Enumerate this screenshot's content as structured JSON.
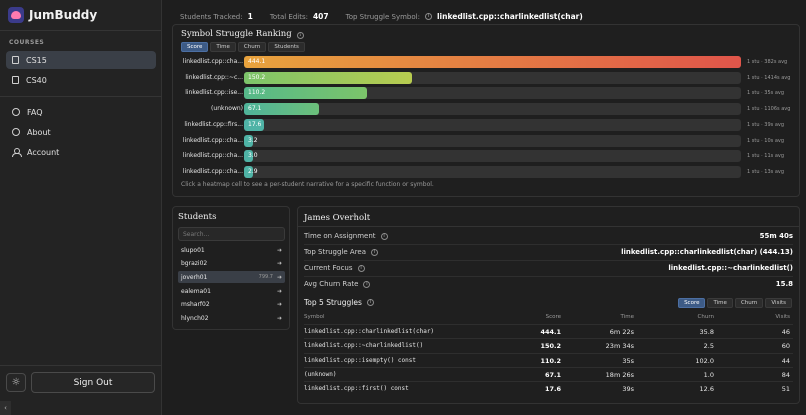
{
  "brand": {
    "name": "JumBuddy"
  },
  "sidebar": {
    "section_label": "COURSES",
    "courses": [
      {
        "label": "CS15",
        "active": true
      },
      {
        "label": "CS40",
        "active": false
      }
    ],
    "links": [
      {
        "label": "FAQ",
        "icon": "help-circle-icon"
      },
      {
        "label": "About",
        "icon": "info-circle-icon"
      },
      {
        "label": "Account",
        "icon": "user-icon"
      }
    ],
    "theme_icon": "sun-icon",
    "theme_glyph": "☼",
    "signout_label": "Sign Out",
    "collapse_glyph": "‹"
  },
  "stats": {
    "students_tracked_label": "Students Tracked:",
    "students_tracked": "1",
    "total_edits_label": "Total Edits:",
    "total_edits": "407",
    "top_struggle_label": "Top Struggle Symbol:",
    "top_struggle": "linkedlist.cpp::charlinkedlist(char)"
  },
  "ranking": {
    "title": "Symbol Struggle Ranking",
    "tabs": [
      {
        "label": "Score",
        "active": true
      },
      {
        "label": "Time",
        "active": false
      },
      {
        "label": "Churn",
        "active": false
      },
      {
        "label": "Students",
        "active": false
      }
    ],
    "max_score": 444.1,
    "rows": [
      {
        "label": "linkedlist.cpp::cha...",
        "score": "444.1",
        "value": 444.1,
        "meta": "1 stu · 382s avg",
        "color": "linear-gradient(90deg,#e8a33d,#e0554a)"
      },
      {
        "label": "linkedlist.cpp::~c...",
        "score": "150.2",
        "value": 150.2,
        "meta": "1 stu · 1414s avg",
        "color": "linear-gradient(90deg,#7cc46a,#b8cc50)"
      },
      {
        "label": "linkedlist.cpp::ise...",
        "score": "110.2",
        "value": 110.2,
        "meta": "1 stu · 35s avg",
        "color": "linear-gradient(90deg,#55b98a,#7cc46a)"
      },
      {
        "label": "(unknown)",
        "score": "67.1",
        "value": 67.1,
        "meta": "1 stu · 1106s avg",
        "color": "linear-gradient(90deg,#4fb39a,#6cc07a)"
      },
      {
        "label": "linkedlist.cpp::firs...",
        "score": "17.6",
        "value": 17.6,
        "meta": "1 stu · 39s avg",
        "color": "#4fb3a6"
      },
      {
        "label": "linkedlist.cpp::cha...",
        "score": "3.2",
        "value": 3.2,
        "meta": "1 stu · 10s avg",
        "color": "#4fb3a6"
      },
      {
        "label": "linkedlist.cpp::cha...",
        "score": "3.0",
        "value": 3.0,
        "meta": "1 stu · 11s avg",
        "color": "#4fb3a6"
      },
      {
        "label": "linkedlist.cpp::cha...",
        "score": "2.9",
        "value": 2.9,
        "meta": "1 stu · 13s avg",
        "color": "#4fb3a6"
      }
    ],
    "hint": "Click a heatmap cell to see a per-student narrative for a specific function or symbol."
  },
  "students": {
    "title": "Students",
    "search_placeholder": "Search...",
    "list": [
      {
        "name": "slupo01",
        "score": "",
        "active": false
      },
      {
        "name": "bgrazi02",
        "score": "",
        "active": false
      },
      {
        "name": "joverh01",
        "score": "799.7",
        "active": true
      },
      {
        "name": "ealema01",
        "score": "",
        "active": false
      },
      {
        "name": "msharf02",
        "score": "",
        "active": false
      },
      {
        "name": "hlynch02",
        "score": "",
        "active": false
      }
    ],
    "arrow_glyph": "➜"
  },
  "detail": {
    "name": "James Overholt",
    "fields": [
      {
        "label": "Time on Assignment",
        "value": "55m 40s"
      },
      {
        "label": "Top Struggle Area",
        "value": "linkedlist.cpp::charlinkedlist(char) (444.13)"
      },
      {
        "label": "Current Focus",
        "value": "linkedlist.cpp::~charlinkedlist()"
      },
      {
        "label": "Avg Churn Rate",
        "value": "15.8"
      }
    ],
    "top5_title": "Top 5 Struggles",
    "tabs": [
      {
        "label": "Score",
        "active": true
      },
      {
        "label": "Time",
        "active": false
      },
      {
        "label": "Churn",
        "active": false
      },
      {
        "label": "Visits",
        "active": false
      }
    ],
    "columns": [
      "Symbol",
      "Score",
      "Time",
      "Churn",
      "Visits"
    ],
    "rows": [
      {
        "symbol": "linkedlist.cpp::charlinkedlist(char)",
        "score": "444.1",
        "time": "6m 22s",
        "churn": "35.8",
        "visits": "46"
      },
      {
        "symbol": "linkedlist.cpp::~charlinkedlist()",
        "score": "150.2",
        "time": "23m 34s",
        "churn": "2.5",
        "visits": "60"
      },
      {
        "symbol": "linkedlist.cpp::isempty() const",
        "score": "110.2",
        "time": "35s",
        "churn": "102.0",
        "visits": "44"
      },
      {
        "symbol": "(unknown)",
        "score": "67.1",
        "time": "18m 26s",
        "churn": "1.0",
        "visits": "84"
      },
      {
        "symbol": "linkedlist.cpp::first() const",
        "score": "17.6",
        "time": "39s",
        "churn": "12.6",
        "visits": "51"
      }
    ]
  },
  "info_glyph": "i"
}
